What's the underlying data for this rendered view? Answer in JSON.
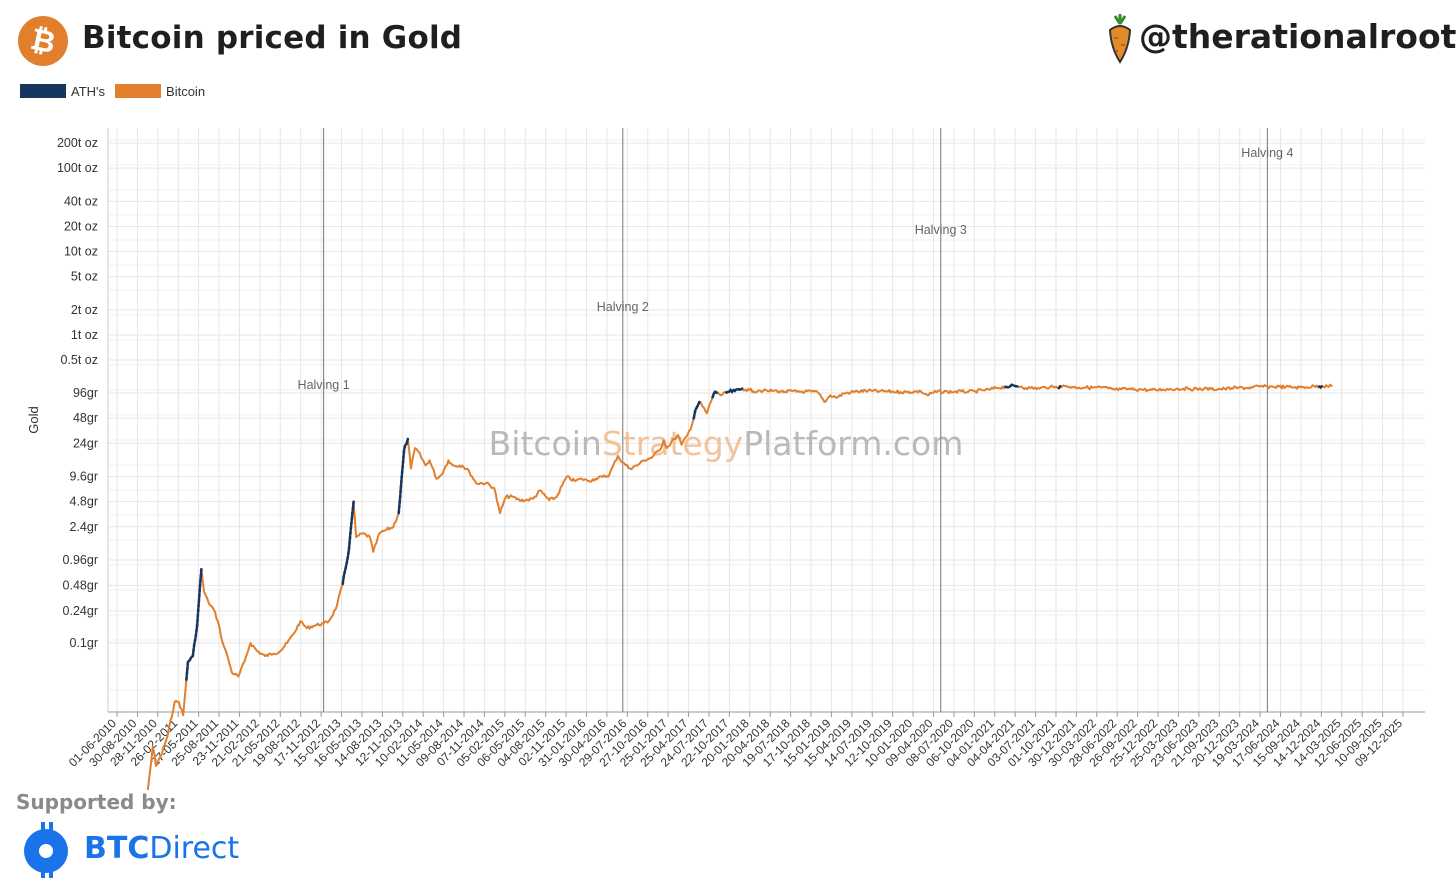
{
  "header": {
    "title": "Bitcoin priced in Gold",
    "handle": "@therationalroot"
  },
  "legend": [
    {
      "label": "ATH's",
      "color": "#17365d"
    },
    {
      "label": "Bitcoin",
      "color": "#e27f2d"
    }
  ],
  "footer": {
    "supported_label": "Supported by:",
    "sponsor_part1": "BTC",
    "sponsor_part2": "Direct"
  },
  "colors": {
    "bitcoin": "#e27f2d",
    "ath": "#17365d",
    "grid": "#e6e6e6",
    "halving_line": "#777777",
    "watermark_grey": "#b9b9b9",
    "watermark_orange": "#f0c39a",
    "sponsor_blue": "#1a73e8"
  },
  "chart_data": {
    "type": "line",
    "y_scale": "log",
    "ylabel": "Gold",
    "watermark": [
      "Bitcoin",
      "Strategy",
      "Platform.com"
    ],
    "y_ticks": [
      {
        "label": "200t oz",
        "grams": 6220000000
      },
      {
        "label": "100t oz",
        "grams": 3110000000
      },
      {
        "label": "40t oz",
        "grams": 1244000000
      },
      {
        "label": "20t oz",
        "grams": 622000000
      },
      {
        "label": "10t oz",
        "grams": 311000000
      },
      {
        "label": "5t oz",
        "grams": 155500000
      },
      {
        "label": "2t oz",
        "grams": 62200000
      },
      {
        "label": "1t oz",
        "grams": 31100000
      },
      {
        "label": "0.5t oz",
        "grams": 15550000
      },
      {
        "label": "96gr",
        "grams": 96
      },
      {
        "label": "48gr",
        "grams": 48
      },
      {
        "label": "24gr",
        "grams": 24
      },
      {
        "label": "9.6gr",
        "grams": 9.6
      },
      {
        "label": "4.8gr",
        "grams": 4.8
      },
      {
        "label": "2.4gr",
        "grams": 2.4
      },
      {
        "label": "0.96gr",
        "grams": 0.96
      },
      {
        "label": "0.48gr",
        "grams": 0.48
      },
      {
        "label": "0.24gr",
        "grams": 0.24
      },
      {
        "label": "0.1gr",
        "grams": 0.1
      }
    ],
    "x_ticks": [
      "01-06-2010",
      "30-08-2010",
      "28-11-2010",
      "26-02-2011",
      "27-05-2011",
      "25-08-2011",
      "23-11-2011",
      "21-02-2012",
      "21-05-2012",
      "19-08-2012",
      "17-11-2012",
      "15-02-2013",
      "16-05-2013",
      "14-08-2013",
      "12-11-2013",
      "10-02-2014",
      "11-05-2014",
      "09-08-2014",
      "07-11-2014",
      "05-02-2015",
      "06-05-2015",
      "04-08-2015",
      "02-11-2015",
      "31-01-2016",
      "30-04-2016",
      "29-07-2016",
      "27-10-2016",
      "25-01-2017",
      "25-04-2017",
      "24-07-2017",
      "22-10-2017",
      "20-01-2018",
      "20-04-2018",
      "19-07-2018",
      "17-10-2018",
      "15-01-2019",
      "15-04-2019",
      "14-07-2019",
      "12-10-2019",
      "10-01-2020",
      "09-04-2020",
      "08-07-2020",
      "06-10-2020",
      "04-01-2021",
      "04-04-2021",
      "03-07-2021",
      "01-10-2021",
      "30-12-2021",
      "30-03-2022",
      "28-06-2022",
      "26-09-2022",
      "25-12-2022",
      "25-03-2023",
      "23-06-2023",
      "21-09-2023",
      "20-12-2023",
      "19-03-2024",
      "17-06-2024",
      "15-09-2024",
      "14-12-2024",
      "14-03-2025",
      "12-06-2025",
      "10-09-2025",
      "09-12-2025"
    ],
    "halvings": [
      {
        "label": "Halving 1",
        "date": "2012-11-28"
      },
      {
        "label": "Halving 2",
        "date": "2016-07-09"
      },
      {
        "label": "Halving 3",
        "date": "2020-05-11"
      },
      {
        "label": "Halving 4",
        "date": "2024-04-20"
      }
    ],
    "series": [
      {
        "name": "Bitcoin",
        "unit": "grams of gold",
        "points": [
          [
            "2010-07-18",
            0.0015
          ],
          [
            "2010-08-01",
            0.0012
          ],
          [
            "2010-09-01",
            0.0015
          ],
          [
            "2010-10-01",
            0.0012
          ],
          [
            "2010-10-15",
            0.0018
          ],
          [
            "2010-11-06",
            0.006
          ],
          [
            "2010-11-20",
            0.0035
          ],
          [
            "2010-12-10",
            0.0045
          ],
          [
            "2011-01-10",
            0.008
          ],
          [
            "2011-02-10",
            0.02
          ],
          [
            "2011-03-01",
            0.02
          ],
          [
            "2011-03-20",
            0.014
          ],
          [
            "2011-04-10",
            0.06
          ],
          [
            "2011-05-01",
            0.07
          ],
          [
            "2011-05-20",
            0.16
          ],
          [
            "2011-06-08",
            0.75
          ],
          [
            "2011-06-20",
            0.4
          ],
          [
            "2011-07-10",
            0.3
          ],
          [
            "2011-08-01",
            0.25
          ],
          [
            "2011-08-20",
            0.18
          ],
          [
            "2011-09-10",
            0.1
          ],
          [
            "2011-10-01",
            0.07
          ],
          [
            "2011-10-20",
            0.045
          ],
          [
            "2011-11-18",
            0.04
          ],
          [
            "2011-12-15",
            0.06
          ],
          [
            "2012-01-10",
            0.1
          ],
          [
            "2012-02-10",
            0.08
          ],
          [
            "2012-03-15",
            0.07
          ],
          [
            "2012-04-20",
            0.075
          ],
          [
            "2012-05-20",
            0.08
          ],
          [
            "2012-06-20",
            0.1
          ],
          [
            "2012-07-20",
            0.13
          ],
          [
            "2012-08-17",
            0.18
          ],
          [
            "2012-09-15",
            0.15
          ],
          [
            "2012-10-15",
            0.16
          ],
          [
            "2012-11-28",
            0.17
          ],
          [
            "2012-12-20",
            0.18
          ],
          [
            "2013-01-20",
            0.25
          ],
          [
            "2013-02-20",
            0.5
          ],
          [
            "2013-03-20",
            1.3
          ],
          [
            "2013-04-09",
            4.8
          ],
          [
            "2013-04-20",
            1.8
          ],
          [
            "2013-05-20",
            2.0
          ],
          [
            "2013-06-20",
            1.8
          ],
          [
            "2013-07-05",
            1.2
          ],
          [
            "2013-08-01",
            2.0
          ],
          [
            "2013-09-01",
            2.2
          ],
          [
            "2013-10-01",
            2.4
          ],
          [
            "2013-10-25",
            3.5
          ],
          [
            "2013-11-18",
            20
          ],
          [
            "2013-12-04",
            27
          ],
          [
            "2013-12-18",
            12
          ],
          [
            "2014-01-05",
            21
          ],
          [
            "2014-01-20",
            19
          ],
          [
            "2014-02-20",
            13
          ],
          [
            "2014-03-10",
            15
          ],
          [
            "2014-04-10",
            9
          ],
          [
            "2014-05-01",
            10
          ],
          [
            "2014-06-01",
            15
          ],
          [
            "2014-06-20",
            13
          ],
          [
            "2014-08-01",
            13
          ],
          [
            "2014-09-01",
            11
          ],
          [
            "2014-10-01",
            8
          ],
          [
            "2014-11-15",
            8
          ],
          [
            "2014-12-20",
            7
          ],
          [
            "2015-01-14",
            3.5
          ],
          [
            "2015-02-10",
            5.5
          ],
          [
            "2015-03-10",
            5.5
          ],
          [
            "2015-04-10",
            5
          ],
          [
            "2015-05-10",
            5
          ],
          [
            "2015-06-10",
            5.2
          ],
          [
            "2015-07-10",
            6.5
          ],
          [
            "2015-08-20",
            5
          ],
          [
            "2015-09-20",
            5.4
          ],
          [
            "2015-11-04",
            9.5
          ],
          [
            "2015-12-10",
            8.5
          ],
          [
            "2016-01-10",
            9
          ],
          [
            "2016-02-10",
            8.5
          ],
          [
            "2016-03-10",
            9
          ],
          [
            "2016-04-10",
            9.5
          ],
          [
            "2016-05-10",
            10
          ],
          [
            "2016-06-17",
            17
          ],
          [
            "2016-07-09",
            14
          ],
          [
            "2016-08-10",
            12
          ],
          [
            "2016-09-10",
            13
          ],
          [
            "2016-10-10",
            15
          ],
          [
            "2016-11-10",
            16
          ],
          [
            "2016-12-20",
            20
          ],
          [
            "2017-01-05",
            26
          ],
          [
            "2017-01-20",
            21
          ],
          [
            "2017-02-20",
            27
          ],
          [
            "2017-03-10",
            30
          ],
          [
            "2017-03-25",
            23
          ],
          [
            "2017-04-20",
            30
          ],
          [
            "2017-05-10",
            40
          ],
          [
            "2017-05-25",
            60
          ],
          [
            "2017-06-12",
            75
          ],
          [
            "2017-07-15",
            55
          ],
          [
            "2017-08-15",
            100
          ],
          [
            "2017-09-01",
            120
          ],
          [
            "2017-09-15",
            90
          ],
          [
            "2017-10-15",
            140
          ],
          [
            "2017-11-15",
            200
          ],
          [
            "2017-12-17",
            480
          ],
          [
            "2018-01-01",
            330
          ],
          [
            "2018-01-20",
            280
          ],
          [
            "2018-02-06",
            170
          ],
          [
            "2018-03-01",
            260
          ],
          [
            "2018-03-20",
            210
          ],
          [
            "2018-04-10",
            190
          ],
          [
            "2018-05-05",
            230
          ],
          [
            "2018-06-01",
            170
          ],
          [
            "2018-06-25",
            150
          ],
          [
            "2018-07-25",
            190
          ],
          [
            "2018-08-15",
            150
          ],
          [
            "2018-09-20",
            160
          ],
          [
            "2018-10-20",
            155
          ],
          [
            "2018-11-15",
            130
          ],
          [
            "2018-12-15",
            75
          ],
          [
            "2019-01-10",
            90
          ],
          [
            "2019-02-10",
            85
          ],
          [
            "2019-03-10",
            95
          ],
          [
            "2019-04-10",
            120
          ],
          [
            "2019-05-10",
            170
          ],
          [
            "2019-06-26",
            220
          ],
          [
            "2019-07-15",
            200
          ],
          [
            "2019-08-15",
            180
          ],
          [
            "2019-09-15",
            175
          ],
          [
            "2019-10-15",
            150
          ],
          [
            "2019-11-15",
            140
          ],
          [
            "2019-12-15",
            130
          ],
          [
            "2020-01-20",
            160
          ],
          [
            "2020-02-14",
            165
          ],
          [
            "2020-03-13",
            90
          ],
          [
            "2020-04-10",
            120
          ],
          [
            "2020-05-11",
            160
          ],
          [
            "2020-06-10",
            150
          ],
          [
            "2020-07-10",
            150
          ],
          [
            "2020-08-10",
            170
          ],
          [
            "2020-09-10",
            155
          ],
          [
            "2020-10-10",
            170
          ],
          [
            "2020-11-10",
            260
          ],
          [
            "2020-12-10",
            320
          ],
          [
            "2021-01-10",
            600
          ],
          [
            "2021-02-20",
            900
          ],
          [
            "2021-03-13",
            1050
          ],
          [
            "2021-04-14",
            1100
          ],
          [
            "2021-05-01",
            1000
          ],
          [
            "2021-05-20",
            600
          ],
          [
            "2021-06-10",
            600
          ],
          [
            "2021-07-20",
            500
          ],
          [
            "2021-08-15",
            800
          ],
          [
            "2021-09-05",
            850
          ],
          [
            "2021-09-25",
            700
          ],
          [
            "2021-10-20",
            1150
          ],
          [
            "2021-11-10",
            1100
          ],
          [
            "2021-12-10",
            850
          ],
          [
            "2022-01-10",
            700
          ],
          [
            "2022-02-10",
            740
          ],
          [
            "2022-03-10",
            650
          ],
          [
            "2022-03-28",
            800
          ],
          [
            "2022-04-20",
            680
          ],
          [
            "2022-05-20",
            520
          ],
          [
            "2022-06-18",
            320
          ],
          [
            "2022-07-15",
            360
          ],
          [
            "2022-08-15",
            390
          ],
          [
            "2022-09-15",
            350
          ],
          [
            "2022-10-15",
            350
          ],
          [
            "2022-11-10",
            280
          ],
          [
            "2022-12-15",
            275
          ],
          [
            "2023-01-15",
            350
          ],
          [
            "2023-02-15",
            390
          ],
          [
            "2023-03-15",
            420
          ],
          [
            "2023-04-15",
            470
          ],
          [
            "2023-05-15",
            420
          ],
          [
            "2023-06-15",
            400
          ],
          [
            "2023-07-15",
            450
          ],
          [
            "2023-08-15",
            400
          ],
          [
            "2023-09-15",
            400
          ],
          [
            "2023-10-15",
            430
          ],
          [
            "2023-11-15",
            560
          ],
          [
            "2023-12-15",
            630
          ],
          [
            "2024-01-15",
            620
          ],
          [
            "2024-02-15",
            720
          ],
          [
            "2024-03-14",
            1050
          ],
          [
            "2024-04-20",
            900
          ],
          [
            "2024-05-15",
            950
          ],
          [
            "2024-06-10",
            990
          ],
          [
            "2024-07-10",
            830
          ],
          [
            "2024-08-10",
            800
          ],
          [
            "2024-09-10",
            730
          ],
          [
            "2024-10-10",
            800
          ],
          [
            "2024-11-12",
            1100
          ],
          [
            "2024-12-17",
            1250
          ],
          [
            "2025-01-10",
            1120
          ],
          [
            "2025-02-01",
            1160
          ]
        ]
      },
      {
        "name": "ATH's",
        "unit": "grams of gold",
        "segments": [
          {
            "from": "2010-07-18",
            "to": "2010-07-25"
          },
          {
            "from": "2010-11-03",
            "to": "2010-11-08"
          },
          {
            "from": "2011-04-01",
            "to": "2011-06-08"
          },
          {
            "from": "2013-02-20",
            "to": "2013-04-09"
          },
          {
            "from": "2013-10-25",
            "to": "2013-12-04"
          },
          {
            "from": "2017-05-15",
            "to": "2017-06-12"
          },
          {
            "from": "2017-08-05",
            "to": "2017-09-01"
          },
          {
            "from": "2017-10-10",
            "to": "2017-12-17"
          },
          {
            "from": "2021-02-20",
            "to": "2021-04-14"
          },
          {
            "from": "2021-10-15",
            "to": "2021-10-22"
          },
          {
            "from": "2024-12-05",
            "to": "2024-12-17"
          }
        ]
      }
    ]
  }
}
